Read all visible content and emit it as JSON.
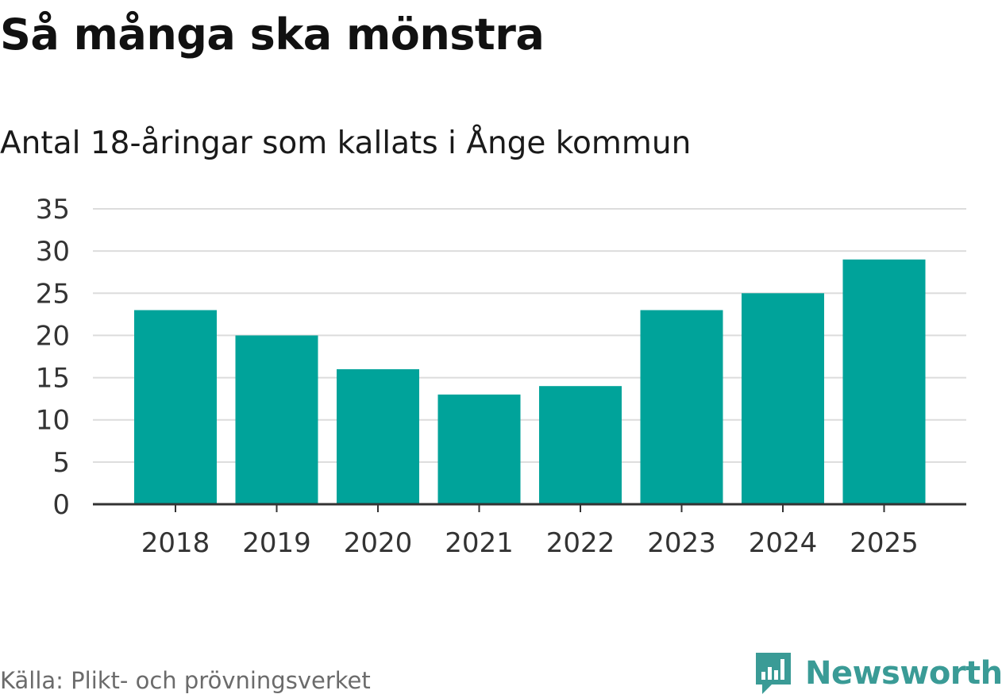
{
  "header": {
    "title": "Så många ska mönstra",
    "subtitle": "Antal 18-åringar som kallats i Ånge kommun"
  },
  "footer": {
    "source": "Källa: Plikt- och prövningsverket",
    "brand": "Newsworthy",
    "brand_icon": "newsworthy-logo-icon"
  },
  "colors": {
    "bar": "#00a39a",
    "grid": "#dcdcdc",
    "axis": "#333333",
    "brand": "#3a9b96"
  },
  "chart_data": {
    "type": "bar",
    "title": "Så många ska mönstra",
    "subtitle": "Antal 18-åringar som kallats i Ånge kommun",
    "categories": [
      "2018",
      "2019",
      "2020",
      "2021",
      "2022",
      "2023",
      "2024",
      "2025"
    ],
    "values": [
      23,
      20,
      16,
      13,
      14,
      23,
      25,
      29
    ],
    "xlabel": "",
    "ylabel": "",
    "ylim": [
      0,
      35
    ],
    "yticks": [
      0,
      5,
      10,
      15,
      20,
      25,
      30,
      35
    ],
    "grid": true,
    "legend": "none"
  }
}
